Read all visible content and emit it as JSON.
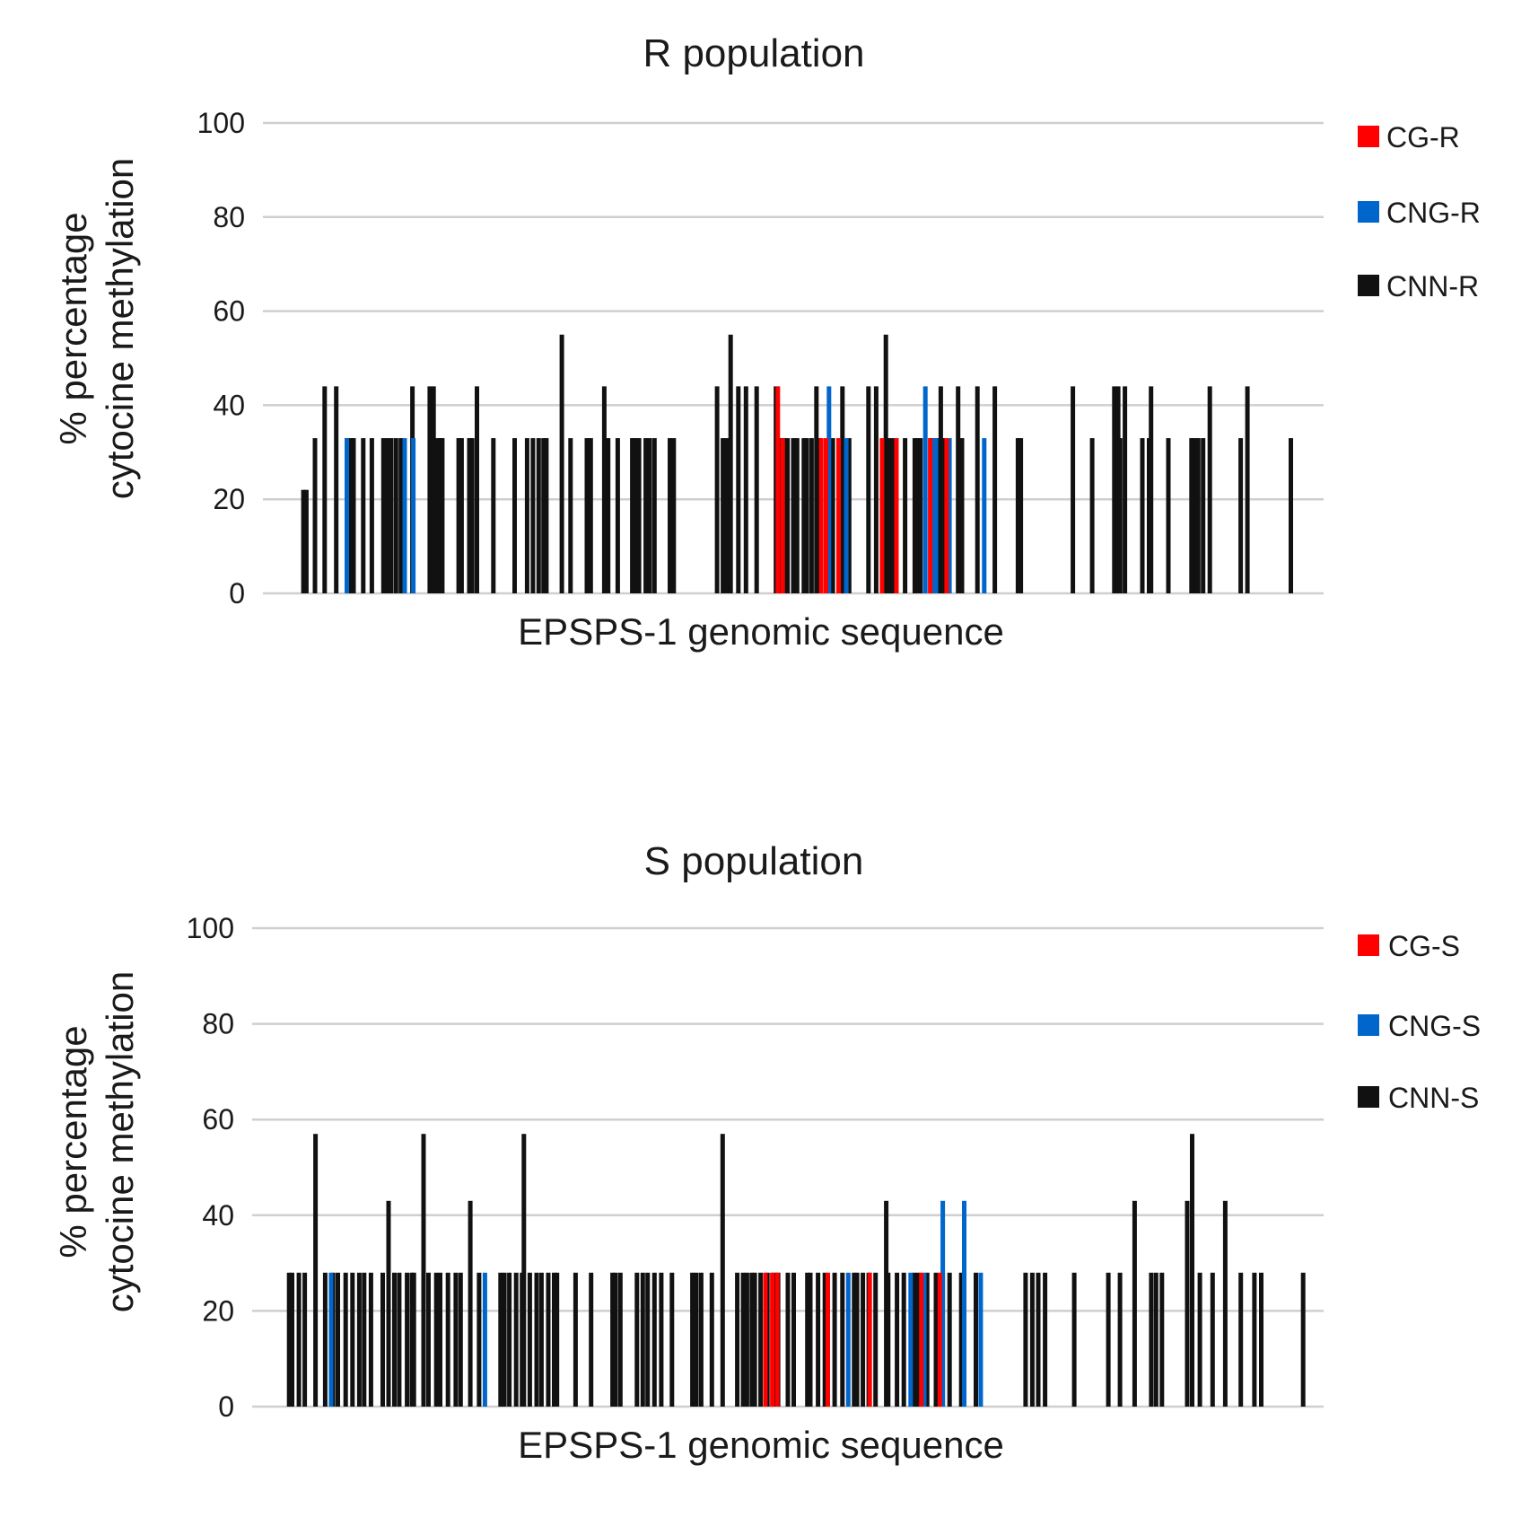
{
  "chart_data": [
    {
      "type": "bar",
      "title": "R population",
      "xlabel": "EPSPS-1 genomic sequence",
      "ylabel": [
        "% percentage",
        "cytocine methylation"
      ],
      "ylim": [
        0,
        100
      ],
      "yticks": [
        0,
        20,
        40,
        60,
        80,
        100
      ],
      "grid": true,
      "legend_position": "right",
      "series": [
        {
          "name": "CG-R",
          "color": "#ff0000",
          "x": [
            53.4,
            53.9,
            57.9,
            58.4,
            59.7,
            64.2,
            65.7,
            69.2,
            70.9
          ],
          "values": [
            44,
            33,
            33,
            33,
            33,
            33,
            33,
            33,
            33
          ]
        },
        {
          "name": "CNG-R",
          "color": "#0066cc",
          "x": [
            8.7,
            14.7,
            15.6,
            58.7,
            60.5,
            68.7,
            69.5,
            69.8,
            71.2,
            74.8
          ],
          "values": [
            33,
            33,
            33,
            44,
            33,
            44,
            33,
            33,
            33,
            33
          ]
        },
        {
          "name": "CNN-R",
          "color": "#111111",
          "x": [
            4.2,
            4.5,
            5.4,
            6.4,
            7.6,
            8.7,
            9.1,
            9.4,
            10.4,
            11.3,
            12.5,
            12.9,
            13.3,
            13.8,
            14.3,
            15.5,
            17.3,
            17.7,
            18.1,
            18.4,
            18.6,
            20.3,
            20.6,
            21.4,
            21.7,
            22.2,
            23.9,
            26.1,
            27.4,
            28.0,
            28.6,
            29.1,
            29.4,
            31.0,
            31.9,
            33.6,
            34.0,
            35.4,
            35.8,
            36.8,
            38.3,
            38.6,
            39.0,
            39.7,
            40.1,
            40.6,
            42.2,
            42.6,
            47.1,
            47.7,
            48.1,
            48.5,
            49.3,
            50.1,
            51.2,
            53.2,
            53.6,
            54.0,
            54.4,
            55.0,
            55.4,
            56.1,
            56.4,
            56.9,
            57.4,
            57.7,
            59.1,
            60.1,
            60.8,
            62.8,
            63.6,
            64.6,
            64.9,
            65.3,
            66.6,
            67.6,
            67.9,
            68.2,
            69.3,
            70.0,
            70.3,
            70.5,
            72.1,
            72.5,
            74.1,
            75.9,
            78.3,
            78.6,
            84.0,
            86.0,
            88.3,
            88.7,
            88.9,
            89.4,
            91.2,
            91.9,
            92.1,
            93.9,
            96.3,
            96.6,
            97.0,
            97.5,
            98.2,
            101.4,
            102.1,
            106.6
          ],
          "values": [
            22,
            22,
            33,
            44,
            44,
            33,
            33,
            33,
            33,
            33,
            33,
            33,
            33,
            33,
            33,
            44,
            44,
            44,
            33,
            33,
            33,
            33,
            33,
            33,
            33,
            44,
            33,
            33,
            33,
            33,
            33,
            33,
            33,
            55,
            33,
            33,
            33,
            44,
            33,
            33,
            33,
            33,
            33,
            33,
            33,
            33,
            33,
            33,
            44,
            33,
            33,
            55,
            44,
            44,
            44,
            44,
            33,
            33,
            33,
            33,
            33,
            33,
            33,
            33,
            44,
            33,
            33,
            44,
            33,
            44,
            44,
            55,
            33,
            33,
            33,
            33,
            33,
            33,
            33,
            33,
            44,
            33,
            44,
            33,
            44,
            44,
            33,
            33,
            44,
            33,
            44,
            44,
            33,
            44,
            33,
            33,
            44,
            33,
            33,
            33,
            33,
            33,
            44,
            33,
            44,
            33
          ]
        }
      ]
    },
    {
      "type": "bar",
      "title": "S population",
      "xlabel": "EPSPS-1 genomic sequence",
      "ylabel": [
        "% percentage",
        "cytocine methylation"
      ],
      "ylim": [
        0,
        100
      ],
      "yticks": [
        0,
        20,
        40,
        60,
        80,
        100
      ],
      "grid": true,
      "legend_position": "right",
      "series": [
        {
          "name": "CG-S",
          "color": "#ff0000",
          "x": [
            52.7,
            53.4,
            53.9,
            59.1,
            63.4,
            68.7,
            70.6
          ],
          "values": [
            28,
            28,
            28,
            28,
            28,
            28,
            28
          ]
        },
        {
          "name": "CNG-S",
          "color": "#0066cc",
          "x": [
            8.1,
            23.9,
            61.2,
            67.6,
            69.0,
            70.9,
            73.1,
            74.8
          ],
          "values": [
            28,
            28,
            28,
            28,
            28,
            43,
            43,
            28
          ]
        },
        {
          "name": "CNN-S",
          "color": "#111111",
          "x": [
            3.8,
            4.1,
            4.8,
            5.4,
            6.5,
            7.5,
            8.3,
            8.8,
            9.6,
            10.3,
            11.0,
            11.5,
            12.2,
            13.4,
            14.0,
            14.6,
            15.1,
            15.9,
            16.4,
            16.6,
            17.6,
            18.1,
            18.9,
            19.3,
            20.1,
            20.9,
            21.4,
            22.4,
            23.3,
            25.5,
            25.9,
            26.4,
            27.1,
            27.7,
            27.9,
            28.5,
            29.2,
            29.7,
            30.4,
            31.0,
            31.3,
            33.2,
            34.8,
            37.0,
            37.3,
            37.8,
            39.5,
            40.1,
            40.6,
            41.3,
            42.0,
            43.1,
            45.2,
            45.6,
            46.1,
            47.2,
            48.3,
            49.8,
            50.4,
            50.8,
            51.3,
            51.6,
            52.2,
            52.9,
            53.6,
            54.0,
            55.0,
            55.6,
            57.0,
            57.3,
            58.1,
            58.8,
            59.8,
            60.6,
            61.8,
            62.1,
            62.7,
            63.3,
            64.0,
            65.1,
            65.3,
            66.2,
            66.9,
            68.0,
            68.4,
            69.3,
            70.2,
            70.9,
            71.6,
            72.8,
            74.3,
            79.4,
            80.1,
            80.7,
            81.4,
            84.4,
            87.9,
            89.1,
            90.6,
            92.3,
            92.8,
            93.4,
            96.0,
            96.5,
            97.3,
            98.6,
            99.9,
            101.5,
            102.9,
            103.6,
            107.9
          ],
          "values": [
            28,
            28,
            28,
            28,
            57,
            28,
            28,
            28,
            28,
            28,
            28,
            28,
            28,
            28,
            43,
            28,
            28,
            28,
            28,
            28,
            57,
            28,
            28,
            28,
            28,
            28,
            28,
            43,
            28,
            28,
            28,
            28,
            28,
            28,
            57,
            28,
            28,
            28,
            28,
            28,
            28,
            28,
            28,
            28,
            28,
            28,
            28,
            28,
            28,
            28,
            28,
            28,
            28,
            28,
            28,
            28,
            57,
            28,
            28,
            28,
            28,
            28,
            28,
            28,
            28,
            28,
            28,
            28,
            28,
            28,
            28,
            28,
            28,
            28,
            28,
            28,
            28,
            28,
            28,
            43,
            28,
            28,
            28,
            28,
            28,
            28,
            28,
            28,
            28,
            28,
            28,
            28,
            28,
            28,
            28,
            28,
            28,
            28,
            43,
            28,
            28,
            28,
            43,
            57,
            28,
            28,
            43,
            28,
            28,
            28,
            28
          ]
        }
      ]
    }
  ]
}
